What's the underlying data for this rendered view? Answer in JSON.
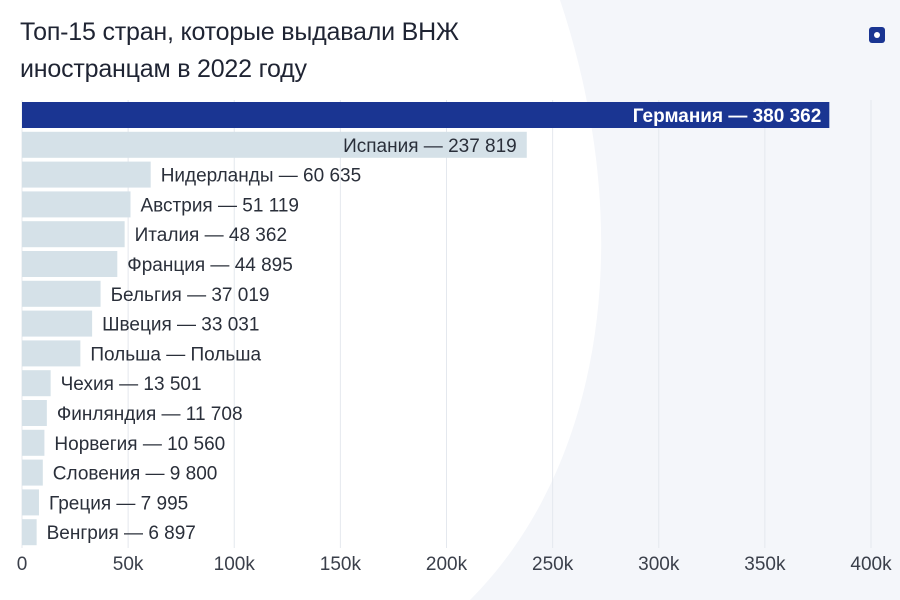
{
  "header": {
    "title_line1": "Топ-15 стран, которые выдавали ВНЖ",
    "title_line2": "иностранцам в 2022 году"
  },
  "colors": {
    "highlight": "#1a3592",
    "bar": "#d5e1e8",
    "label": "#2a2f3a",
    "highlight_label": "#ffffff",
    "grid": "#e4e8ee",
    "axis_text": "#3a3f4a"
  },
  "chart_data": {
    "type": "bar",
    "orientation": "horizontal",
    "title": "Топ-15 стран, которые выдавали ВНЖ иностранцам в 2022 году",
    "xlabel": "",
    "ylabel": "",
    "xlim": [
      0,
      400000
    ],
    "ticks": [
      0,
      50000,
      100000,
      150000,
      200000,
      250000,
      300000,
      350000,
      400000
    ],
    "tick_labels": [
      "0",
      "50k",
      "100k",
      "150k",
      "200k",
      "250k",
      "300k",
      "350k",
      "400k"
    ],
    "grid": true,
    "bars": [
      {
        "country": "Германия",
        "value": 380362,
        "label": "Германия — 380 362",
        "highlight": true
      },
      {
        "country": "Испания",
        "value": 237819,
        "label": "Испания — 237 819"
      },
      {
        "country": "Нидерланды",
        "value": 60635,
        "label": "Нидерланды — 60 635"
      },
      {
        "country": "Австрия",
        "value": 51119,
        "label": "Австрия — 51 119"
      },
      {
        "country": "Италия",
        "value": 48362,
        "label": "Италия — 48 362"
      },
      {
        "country": "Франция",
        "value": 44895,
        "label": "Франция — 44 895"
      },
      {
        "country": "Бельгия",
        "value": 37019,
        "label": "Бельгия — 37 019"
      },
      {
        "country": "Швеция",
        "value": 33031,
        "label": "Швеция — 33 031"
      },
      {
        "country": "Польша",
        "value": 27500,
        "label": "Польша — Польша"
      },
      {
        "country": "Чехия",
        "value": 13501,
        "label": "Чехия — 13 501"
      },
      {
        "country": "Финляндия",
        "value": 11708,
        "label": "Финляндия — 11 708"
      },
      {
        "country": "Норвегия",
        "value": 10560,
        "label": "Норвегия — 10 560"
      },
      {
        "country": "Словения",
        "value": 9800,
        "label": "Словения — 9 800"
      },
      {
        "country": "Греция",
        "value": 7995,
        "label": "Греция — 7 995"
      },
      {
        "country": "Венгрия",
        "value": 6897,
        "label": "Венгрия — 6 897"
      }
    ]
  }
}
